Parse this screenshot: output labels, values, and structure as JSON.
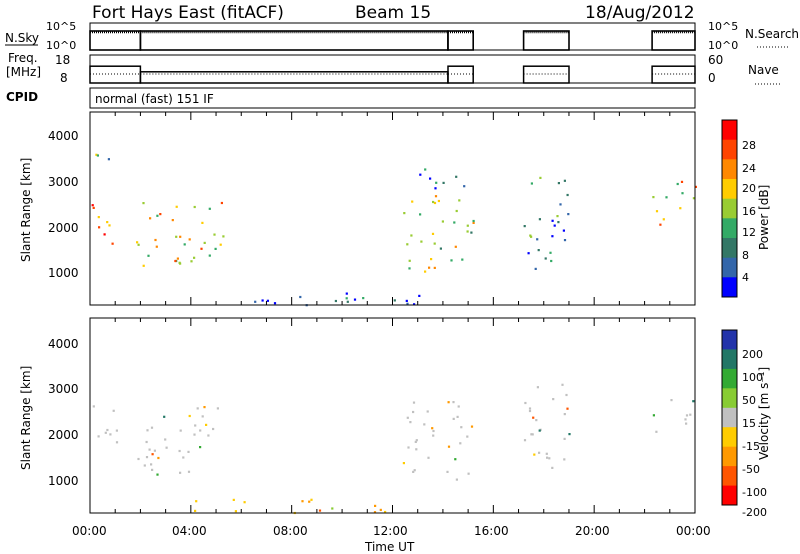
{
  "header": {
    "radar": "Fort Hays East (fitACF)",
    "beam": "Beam 15",
    "date": "18/Aug/2012"
  },
  "status_panel": {
    "left_label": "N.Sky",
    "left_ticks": [
      "10^5",
      "10^0"
    ],
    "right_label": "N.Search",
    "right_ticks": [
      "10^5",
      "10^0"
    ]
  },
  "freq_panel": {
    "left_label_1": "Freq.",
    "left_label_2": "[MHz]",
    "left_ticks": [
      "18",
      "8"
    ],
    "right_ticks": [
      "60",
      "0"
    ],
    "right_label": "Nave"
  },
  "cpid": {
    "label": "CPID",
    "program": "normal (fast) 151 IF"
  },
  "x_axis": {
    "label": "Time UT",
    "ticks": [
      "00:00",
      "04:00",
      "08:00",
      "12:00",
      "16:00",
      "20:00",
      "00:00"
    ]
  },
  "power_panel": {
    "ylabel": "Slant Range [km]",
    "yticks": [
      "4000",
      "3000",
      "2000",
      "1000"
    ],
    "colorbar_label": "Power [dB]",
    "colorbar_ticks": [
      "28",
      "24",
      "20",
      "16",
      "12",
      "8",
      "4"
    ],
    "colors": [
      "#ff0000",
      "#ff4400",
      "#ff8800",
      "#ffcc00",
      "#99cc33",
      "#33aa66",
      "#337766",
      "#3366aa",
      "#0000ff"
    ]
  },
  "velocity_panel": {
    "ylabel": "Slant Range [km]",
    "yticks": [
      "4000",
      "3000",
      "2000",
      "1000"
    ],
    "colorbar_label": "Velocity [m s⁻¹]",
    "colorbar_ticks": [
      "200",
      "100",
      "50",
      "15",
      "-15",
      "-50",
      "-100",
      "-200"
    ],
    "colors": [
      "#2233aa",
      "#227766",
      "#33aa33",
      "#88cc33",
      "#c0c0c0",
      "#ffcc00",
      "#ff9900",
      "#ff5500",
      "#ff0000"
    ]
  },
  "chart_data": {
    "type": "heatmap",
    "x_range_hours": [
      0,
      24
    ],
    "y_range_km": [
      180,
      4500
    ],
    "power_regions": [
      {
        "t": [
          0.0,
          1.3
        ],
        "r": [
          1500,
          2500
        ],
        "dB": 24
      },
      {
        "t": [
          0.1,
          1.0
        ],
        "r": [
          3300,
          3900
        ],
        "dB": 12
      },
      {
        "t": [
          1.8,
          5.3
        ],
        "r": [
          1050,
          2600
        ],
        "dB": 18
      },
      {
        "t": [
          12.4,
          15.2
        ],
        "r": [
          900,
          2700
        ],
        "dB": 16
      },
      {
        "t": [
          13.0,
          15.0
        ],
        "r": [
          2800,
          3400
        ],
        "dB": 8
      },
      {
        "t": [
          17.2,
          19.0
        ],
        "r": [
          900,
          3100
        ],
        "dB": 10
      },
      {
        "t": [
          22.3,
          24.0
        ],
        "r": [
          2000,
          3000
        ],
        "dB": 20
      },
      {
        "t": [
          6.0,
          15.0
        ],
        "r": [
          200,
          500
        ],
        "dB": 6
      }
    ],
    "velocity_regions": [
      {
        "t": [
          0.0,
          1.3
        ],
        "r": [
          1600,
          2600
        ],
        "v": 0
      },
      {
        "t": [
          1.8,
          5.3
        ],
        "r": [
          1050,
          2600
        ],
        "v": 0
      },
      {
        "t": [
          12.4,
          15.2
        ],
        "r": [
          900,
          2700
        ],
        "v": 0
      },
      {
        "t": [
          17.2,
          19.0
        ],
        "r": [
          900,
          3100
        ],
        "v": 0
      },
      {
        "t": [
          22.3,
          24.0
        ],
        "r": [
          2000,
          2800
        ],
        "v": 0
      },
      {
        "t": [
          4.0,
          12.0
        ],
        "r": [
          200,
          500
        ],
        "v": -50
      }
    ],
    "data_gaps_hours": [
      [
        15.2,
        17.2
      ],
      [
        19.0,
        22.3
      ]
    ],
    "frequency_mhz": [
      {
        "t": [
          0.0,
          2.0
        ],
        "value": 14.0
      },
      {
        "t": [
          2.0,
          14.2
        ],
        "value": 12.0
      },
      {
        "t": [
          14.2,
          15.2
        ],
        "value": 14.0
      },
      {
        "t": [
          17.2,
          19.0
        ],
        "value": 14.0
      },
      {
        "t": [
          22.3,
          24.0
        ],
        "value": 14.0
      }
    ]
  }
}
